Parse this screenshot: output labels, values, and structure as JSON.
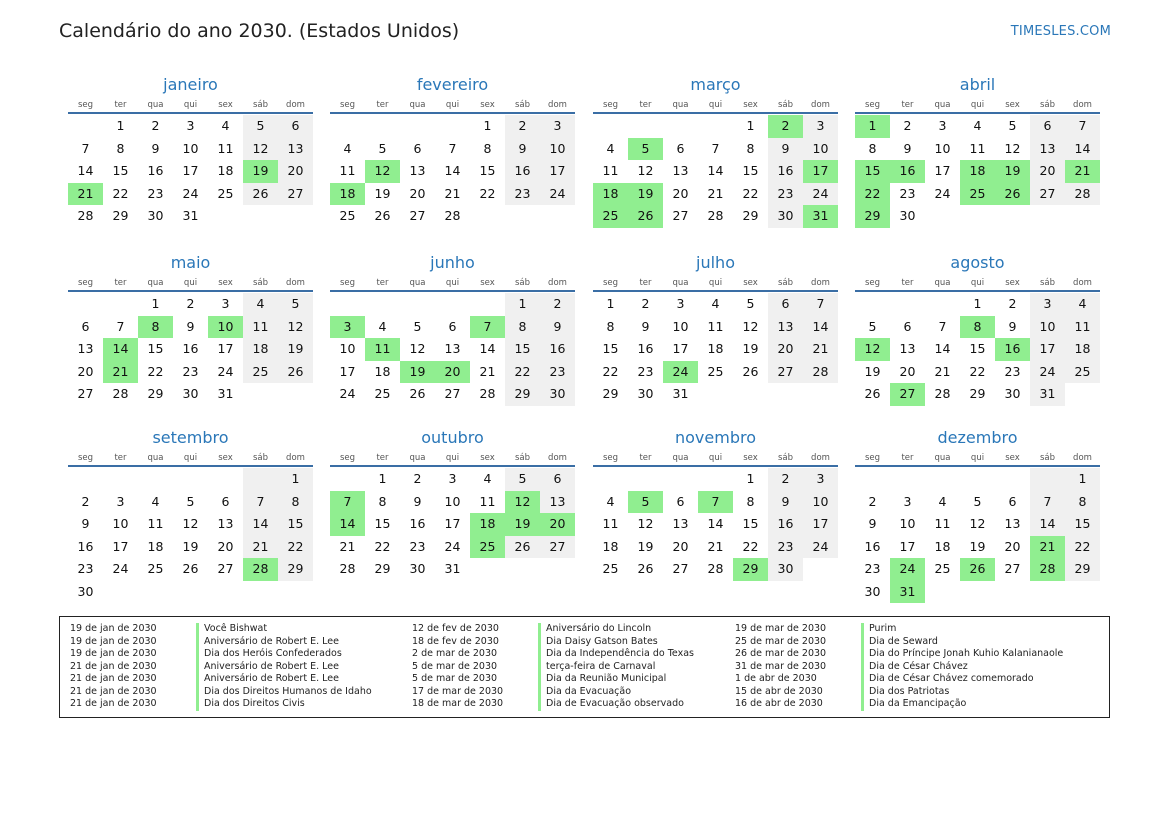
{
  "header": {
    "title": "Calendário do ano 2030. (Estados Unidos)",
    "site": "TIMESLES.COM"
  },
  "weekdays": [
    "seg",
    "ter",
    "qua",
    "qui",
    "sex",
    "sáb",
    "dom"
  ],
  "months": [
    {
      "name": "janeiro",
      "start": 1,
      "days": 31,
      "holidays": [
        19,
        21
      ]
    },
    {
      "name": "fevereiro",
      "start": 4,
      "days": 28,
      "holidays": [
        12,
        18
      ]
    },
    {
      "name": "março",
      "start": 4,
      "days": 31,
      "holidays": [
        2,
        5,
        17,
        18,
        19,
        25,
        26,
        31
      ]
    },
    {
      "name": "abril",
      "start": 0,
      "days": 30,
      "holidays": [
        1,
        15,
        16,
        18,
        19,
        21,
        22,
        25,
        26,
        29
      ]
    },
    {
      "name": "maio",
      "start": 2,
      "days": 31,
      "holidays": [
        8,
        10,
        14,
        21
      ]
    },
    {
      "name": "junho",
      "start": 5,
      "days": 30,
      "holidays": [
        3,
        7,
        11,
        19,
        20
      ]
    },
    {
      "name": "julho",
      "start": 0,
      "days": 31,
      "holidays": [
        24
      ]
    },
    {
      "name": "agosto",
      "start": 3,
      "days": 31,
      "holidays": [
        8,
        12,
        16,
        27
      ]
    },
    {
      "name": "setembro",
      "start": 6,
      "days": 30,
      "holidays": [
        28
      ]
    },
    {
      "name": "outubro",
      "start": 1,
      "days": 31,
      "holidays": [
        7,
        12,
        14,
        18,
        19,
        20,
        25
      ]
    },
    {
      "name": "novembro",
      "start": 4,
      "days": 30,
      "holidays": [
        5,
        7,
        29
      ]
    },
    {
      "name": "dezembro",
      "start": 6,
      "days": 31,
      "holidays": [
        21,
        24,
        26,
        28,
        31
      ]
    }
  ],
  "holiday_list": [
    [
      {
        "date": "19 de jan de 2030",
        "name": "Você Bishwat"
      },
      {
        "date": "19 de jan de 2030",
        "name": "Aniversário de Robert E. Lee"
      },
      {
        "date": "19 de jan de 2030",
        "name": "Dia dos Heróis Confederados"
      },
      {
        "date": "21 de jan de 2030",
        "name": "Aniversário de Robert E. Lee"
      },
      {
        "date": "21 de jan de 2030",
        "name": "Aniversário de Robert E. Lee"
      },
      {
        "date": "21 de jan de 2030",
        "name": "Dia dos Direitos Humanos de Idaho"
      },
      {
        "date": "21 de jan de 2030",
        "name": "Dia dos Direitos Civis"
      }
    ],
    [
      {
        "date": "12 de fev de 2030",
        "name": "Aniversário do Lincoln"
      },
      {
        "date": "18 de fev de 2030",
        "name": "Dia Daisy Gatson Bates"
      },
      {
        "date": "2 de mar de 2030",
        "name": "Dia da Independência do Texas"
      },
      {
        "date": "5 de mar de 2030",
        "name": "terça-feira de Carnaval"
      },
      {
        "date": "5 de mar de 2030",
        "name": "Dia da Reunião Municipal"
      },
      {
        "date": "17 de mar de 2030",
        "name": "Dia da Evacuação"
      },
      {
        "date": "18 de mar de 2030",
        "name": "Dia de Evacuação observado"
      }
    ],
    [
      {
        "date": "19 de mar de 2030",
        "name": "Purim"
      },
      {
        "date": "25 de mar de 2030",
        "name": "Dia de Seward"
      },
      {
        "date": "26 de mar de 2030",
        "name": "Dia do Príncipe Jonah Kuhio Kalanianaole"
      },
      {
        "date": "31 de mar de 2030",
        "name": "Dia de César Chávez"
      },
      {
        "date": "1 de abr de 2030",
        "name": "Dia de César Chávez comemorado"
      },
      {
        "date": "15 de abr de 2030",
        "name": "Dia dos Patriotas"
      },
      {
        "date": "16 de abr de 2030",
        "name": "Dia da Emancipação"
      }
    ]
  ],
  "colors": {
    "accent": "#2a77b8",
    "holiday": "#90ee90",
    "weekend": "#f0f0f0"
  }
}
